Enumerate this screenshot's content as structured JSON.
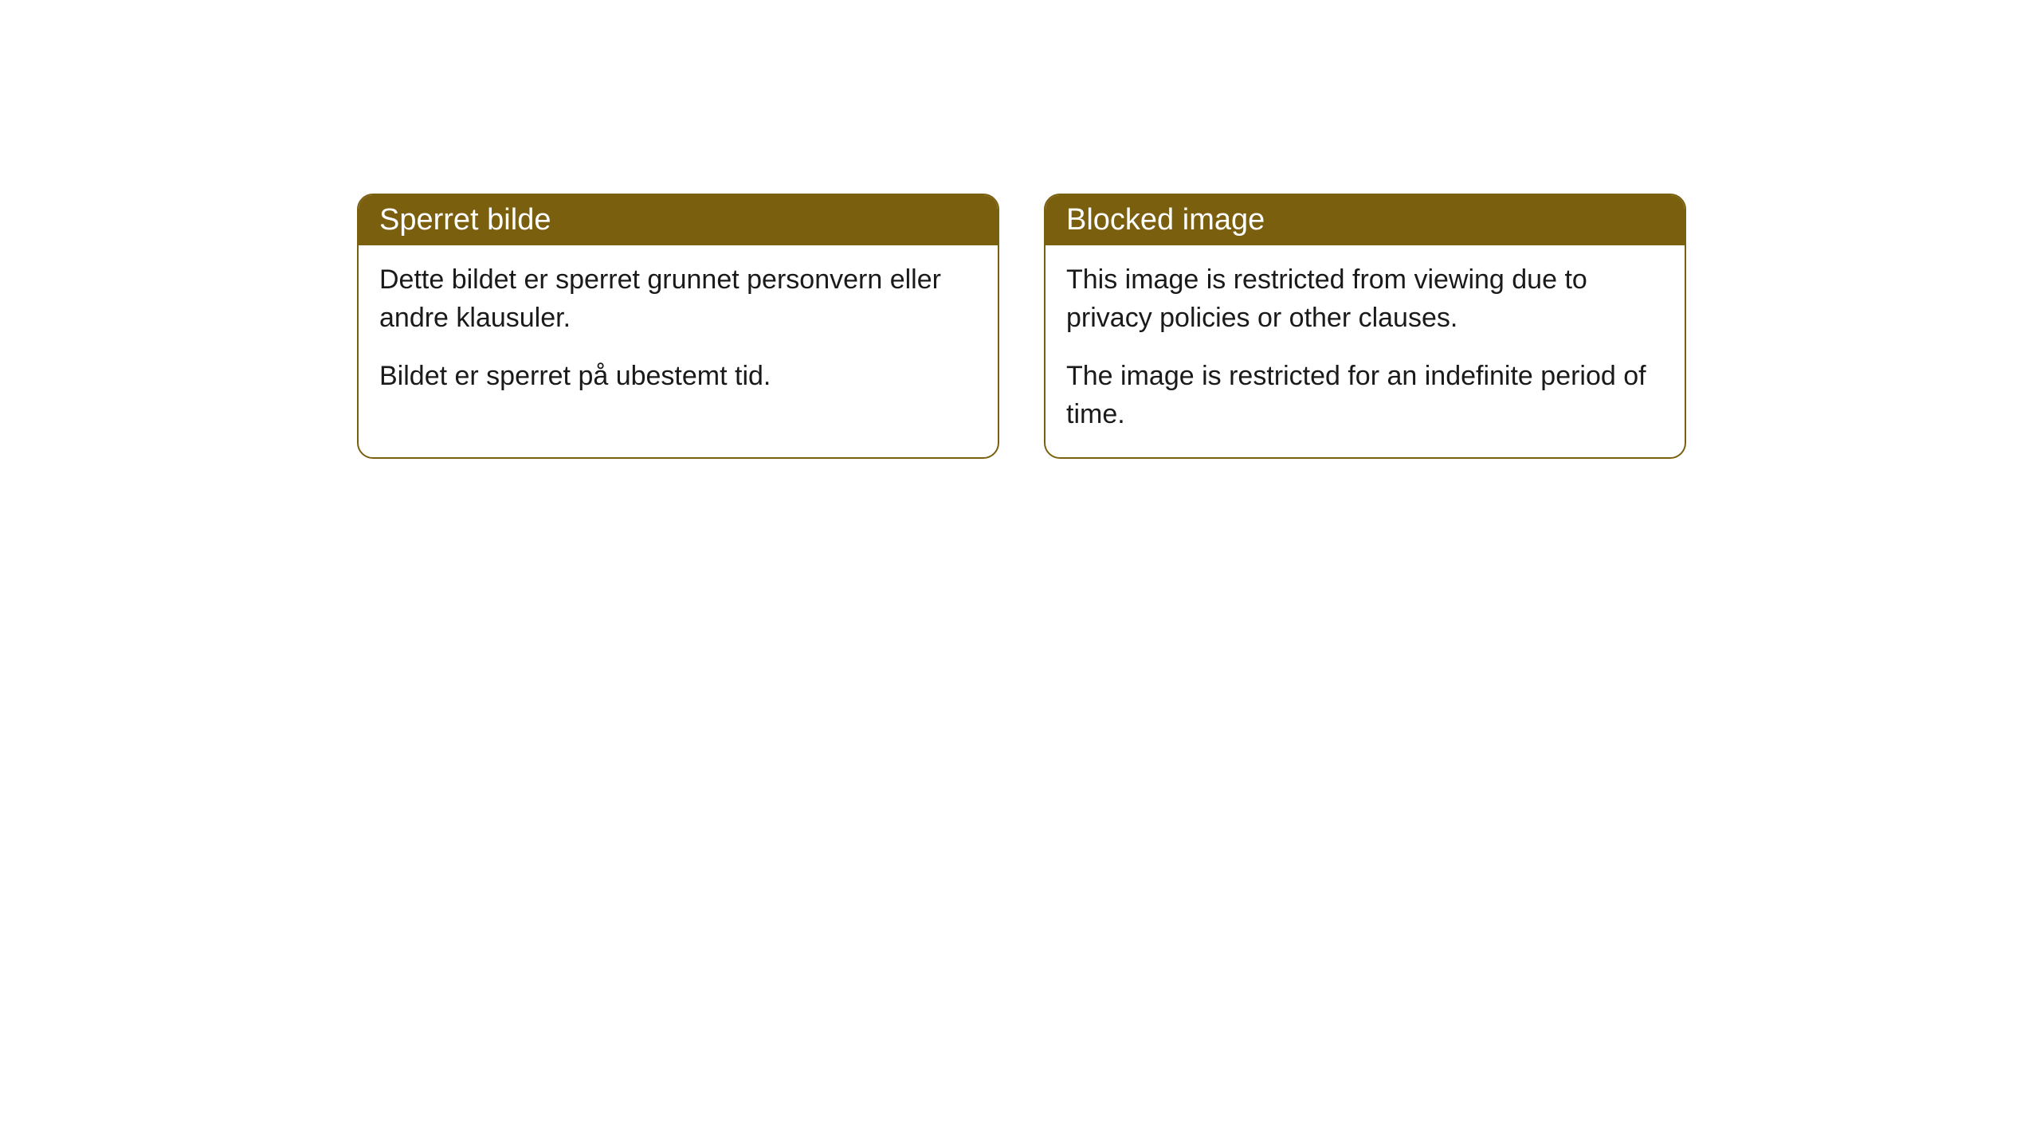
{
  "cards": [
    {
      "title": "Sperret bilde",
      "paragraph1": "Dette bildet er sperret grunnet personvern eller andre klausuler.",
      "paragraph2": "Bildet er sperret på ubestemt tid."
    },
    {
      "title": "Blocked image",
      "paragraph1": "This image is restricted from viewing due to privacy policies or other clauses.",
      "paragraph2": "The image is restricted for an indefinite period of time."
    }
  ],
  "styling": {
    "header_background": "#7a5f0f",
    "header_text_color": "#ffffff",
    "border_color": "#7a5f0f",
    "body_background": "#ffffff",
    "body_text_color": "#1a1a1a",
    "border_radius": 20,
    "title_fontsize": 38,
    "body_fontsize": 34
  }
}
